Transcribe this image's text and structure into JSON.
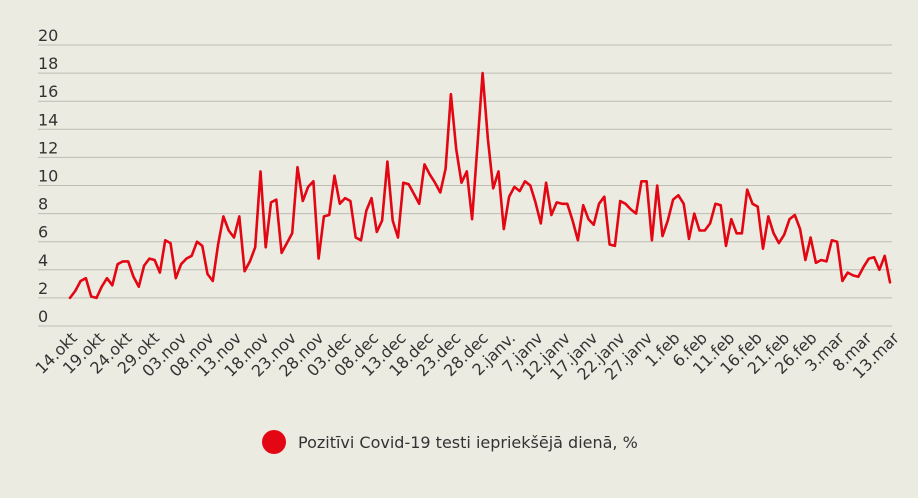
{
  "chart_data": {
    "type": "line",
    "y_ticks": [
      0,
      2,
      4,
      6,
      8,
      10,
      12,
      14,
      16,
      18,
      20
    ],
    "ylim": [
      0,
      20
    ],
    "grid": true,
    "legend_position": "bottom-center",
    "x_tick_labels": [
      "14.okt",
      "19.okt",
      "24.okt",
      "29.okt",
      "03.nov",
      "08.nov",
      "13.nov",
      "18.nov",
      "23.nov",
      "28.nov",
      "03.dec",
      "08.dec",
      "13.dec",
      "18.dec",
      "23.dec",
      "28.dec",
      "2.janv.",
      "7.janv",
      "12.janv",
      "17.janv",
      "22.janv",
      "27.janv",
      "1.feb",
      "6.feb",
      "11.feb",
      "16.feb",
      "21.feb",
      "26.feb",
      "3.mar",
      "8.mar",
      "13.mar"
    ],
    "series": [
      {
        "name": "Pozitīvi Covid-19 testi iepriekšējā dienā, %",
        "color": "#e30613",
        "values": [
          2.0,
          2.5,
          3.2,
          3.4,
          2.1,
          2.0,
          2.8,
          3.4,
          2.9,
          4.4,
          4.6,
          4.6,
          3.5,
          2.8,
          4.3,
          4.8,
          4.7,
          3.8,
          6.1,
          5.9,
          3.4,
          4.4,
          4.8,
          5.0,
          6.0,
          5.7,
          3.7,
          3.2,
          5.8,
          7.8,
          6.8,
          6.3,
          7.8,
          3.9,
          4.6,
          5.6,
          11.0,
          5.6,
          8.8,
          9.0,
          5.2,
          5.9,
          6.6,
          11.3,
          8.9,
          9.9,
          10.3,
          4.8,
          7.8,
          7.9,
          10.7,
          8.7,
          9.1,
          8.9,
          6.3,
          6.1,
          8.2,
          9.1,
          6.7,
          7.5,
          11.7,
          7.5,
          6.3,
          10.2,
          10.1,
          9.4,
          8.7,
          11.5,
          10.8,
          10.2,
          9.5,
          11.2,
          16.5,
          12.6,
          10.2,
          11.0,
          7.6,
          12.8,
          18.0,
          13.3,
          9.8,
          11.0,
          6.9,
          9.2,
          9.9,
          9.6,
          10.3,
          10.0,
          8.8,
          7.3,
          10.2,
          7.9,
          8.8,
          8.7,
          8.7,
          7.5,
          6.1,
          8.6,
          7.6,
          7.2,
          8.7,
          9.2,
          5.8,
          5.7,
          8.9,
          8.7,
          8.3,
          8.0,
          10.3,
          10.3,
          6.1,
          10.0,
          6.4,
          7.5,
          9.0,
          9.3,
          8.7,
          6.2,
          8.0,
          6.8,
          6.8,
          7.3,
          8.7,
          8.6,
          5.7,
          7.6,
          6.6,
          6.6,
          9.7,
          8.7,
          8.5,
          5.5,
          7.8,
          6.6,
          5.9,
          6.5,
          7.6,
          7.9,
          6.9,
          4.7,
          6.3,
          4.5,
          4.7,
          4.6,
          6.1,
          6.0,
          3.2,
          3.8,
          3.6,
          3.5,
          4.2,
          4.8,
          4.9,
          4.0,
          5.0,
          3.1
        ]
      }
    ]
  },
  "legend": {
    "label": "Pozitīvi Covid-19 testi iepriekšējā dienā, %",
    "color": "#e30613"
  }
}
